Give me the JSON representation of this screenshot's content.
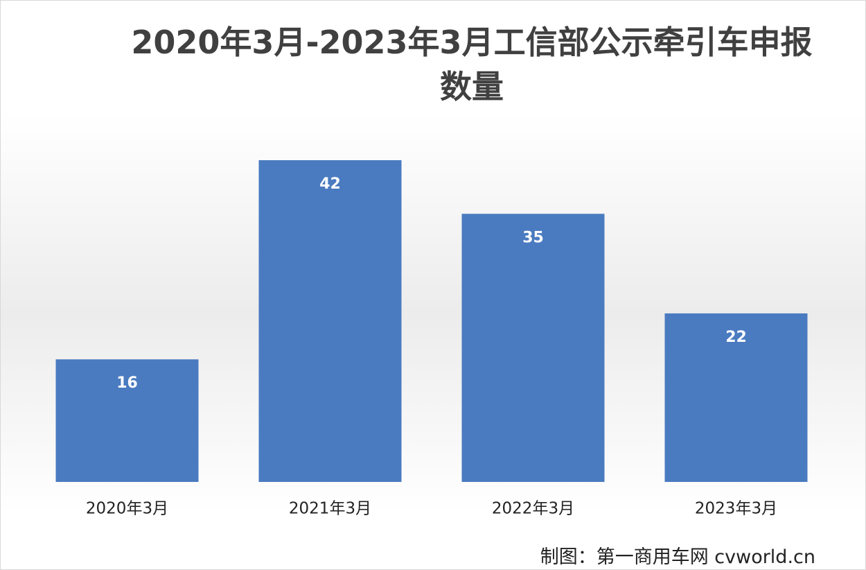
{
  "chart_data": {
    "type": "bar",
    "title": "2020年3月-2023年3月工信部公示牵引车申报数量",
    "categories": [
      "2020年3月",
      "2021年3月",
      "2022年3月",
      "2023年3月"
    ],
    "values": [
      16,
      42,
      35,
      22
    ],
    "color": "#4a7bc0",
    "source": "制图：第一商用车网 cvworld.cn"
  }
}
